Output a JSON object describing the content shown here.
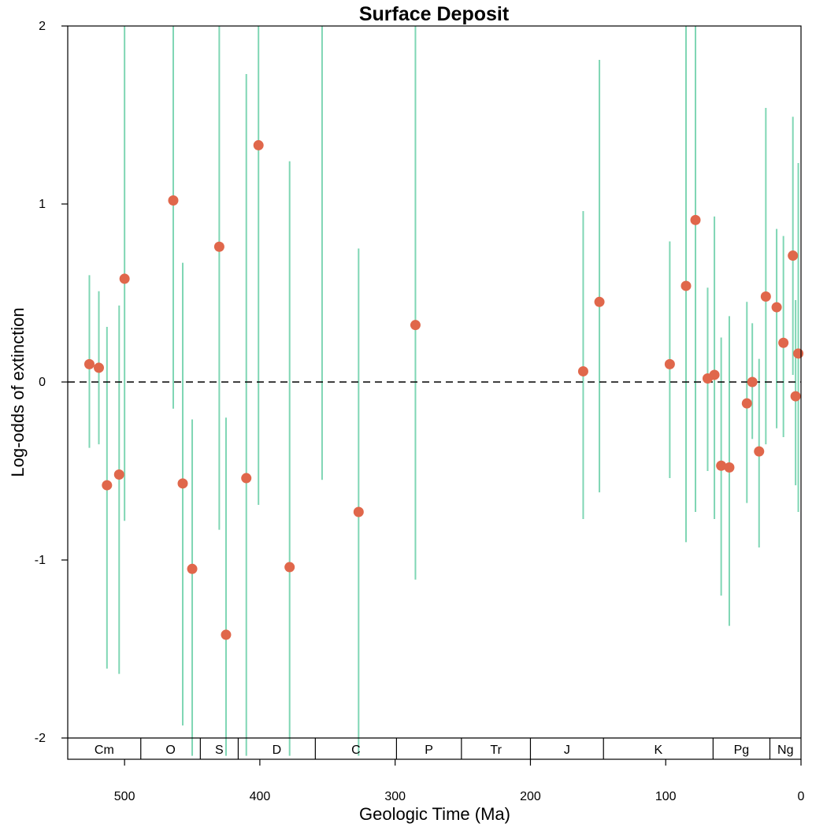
{
  "chart_data": {
    "type": "scatter",
    "title": "Surface Deposit",
    "xlabel": "Geologic Time (Ma)",
    "ylabel": "Log-odds of extinction",
    "xlim": [
      542,
      0
    ],
    "ylim": [
      -2,
      2
    ],
    "x_ticks": [
      500,
      400,
      300,
      200,
      100,
      0
    ],
    "y_ticks": [
      2,
      1,
      0,
      -1,
      -2
    ],
    "y_tick_labels": [
      "2",
      "1",
      "0",
      "-1",
      "-2"
    ],
    "reference_line": {
      "y": 0,
      "style": "dashed"
    },
    "point_color": "#e0674b",
    "interval_color": "#7fd6b4",
    "points": [
      {
        "x": 526,
        "y": 0.1,
        "lo": -0.37,
        "hi": 0.6
      },
      {
        "x": 519,
        "y": 0.08,
        "lo": -0.35,
        "hi": 0.51
      },
      {
        "x": 513,
        "y": -0.58,
        "lo": -1.61,
        "hi": 0.31
      },
      {
        "x": 504,
        "y": -0.52,
        "lo": -1.64,
        "hi": 0.43
      },
      {
        "x": 500,
        "y": 0.58,
        "lo": -0.78,
        "hi": 2.0
      },
      {
        "x": 464,
        "y": 1.02,
        "lo": -0.15,
        "hi": 2.0
      },
      {
        "x": 457,
        "y": -0.57,
        "lo": -1.93,
        "hi": 0.67
      },
      {
        "x": 450,
        "y": -1.05,
        "lo": -2.1,
        "hi": -0.21
      },
      {
        "x": 430,
        "y": 0.76,
        "lo": -0.83,
        "hi": 2.0
      },
      {
        "x": 425,
        "y": -1.42,
        "lo": -2.1,
        "hi": -0.2
      },
      {
        "x": 410,
        "y": -0.54,
        "lo": -2.1,
        "hi": 1.73
      },
      {
        "x": 401,
        "y": 1.33,
        "lo": -0.69,
        "hi": 2.0
      },
      {
        "x": 378,
        "y": -1.04,
        "lo": -2.1,
        "hi": 1.24
      },
      {
        "x": 354,
        "y": null,
        "lo": -0.55,
        "hi": 2.0
      },
      {
        "x": 327,
        "y": -0.73,
        "lo": -2.1,
        "hi": 0.75
      },
      {
        "x": 285,
        "y": 0.32,
        "lo": -1.11,
        "hi": 2.0
      },
      {
        "x": 161,
        "y": 0.06,
        "lo": -0.77,
        "hi": 0.96
      },
      {
        "x": 149,
        "y": 0.45,
        "lo": -0.62,
        "hi": 1.81
      },
      {
        "x": 97,
        "y": 0.1,
        "lo": -0.54,
        "hi": 0.79
      },
      {
        "x": 85,
        "y": 0.54,
        "lo": -0.9,
        "hi": 2.0
      },
      {
        "x": 78,
        "y": 0.91,
        "lo": -0.73,
        "hi": 2.0
      },
      {
        "x": 69,
        "y": 0.02,
        "lo": -0.5,
        "hi": 0.53
      },
      {
        "x": 64,
        "y": 0.04,
        "lo": -0.77,
        "hi": 0.93
      },
      {
        "x": 59,
        "y": -0.47,
        "lo": -1.2,
        "hi": 0.25
      },
      {
        "x": 53,
        "y": -0.48,
        "lo": -1.37,
        "hi": 0.37
      },
      {
        "x": 40,
        "y": -0.12,
        "lo": -0.68,
        "hi": 0.45
      },
      {
        "x": 36,
        "y": 0.0,
        "lo": -0.32,
        "hi": 0.33
      },
      {
        "x": 31,
        "y": -0.39,
        "lo": -0.93,
        "hi": 0.13
      },
      {
        "x": 26,
        "y": 0.48,
        "lo": -0.35,
        "hi": 1.54
      },
      {
        "x": 18,
        "y": 0.42,
        "lo": -0.26,
        "hi": 0.86
      },
      {
        "x": 13,
        "y": 0.22,
        "lo": -0.31,
        "hi": 0.82
      },
      {
        "x": 6,
        "y": 0.71,
        "lo": 0.04,
        "hi": 1.49
      },
      {
        "x": 4,
        "y": -0.08,
        "lo": -0.58,
        "hi": 0.46
      },
      {
        "x": 2,
        "y": 0.16,
        "lo": -0.73,
        "hi": 1.23
      }
    ],
    "periods": [
      {
        "label": "Cm",
        "start": 542,
        "end": 488
      },
      {
        "label": "O",
        "start": 488,
        "end": 444
      },
      {
        "label": "S",
        "start": 444,
        "end": 416
      },
      {
        "label": "D",
        "start": 416,
        "end": 359
      },
      {
        "label": "C",
        "start": 359,
        "end": 299
      },
      {
        "label": "P",
        "start": 299,
        "end": 251
      },
      {
        "label": "Tr",
        "start": 251,
        "end": 200
      },
      {
        "label": "J",
        "start": 200,
        "end": 146
      },
      {
        "label": "K",
        "start": 146,
        "end": 65
      },
      {
        "label": "Pg",
        "start": 65,
        "end": 23
      },
      {
        "label": "Ng",
        "start": 23,
        "end": 0
      }
    ]
  }
}
